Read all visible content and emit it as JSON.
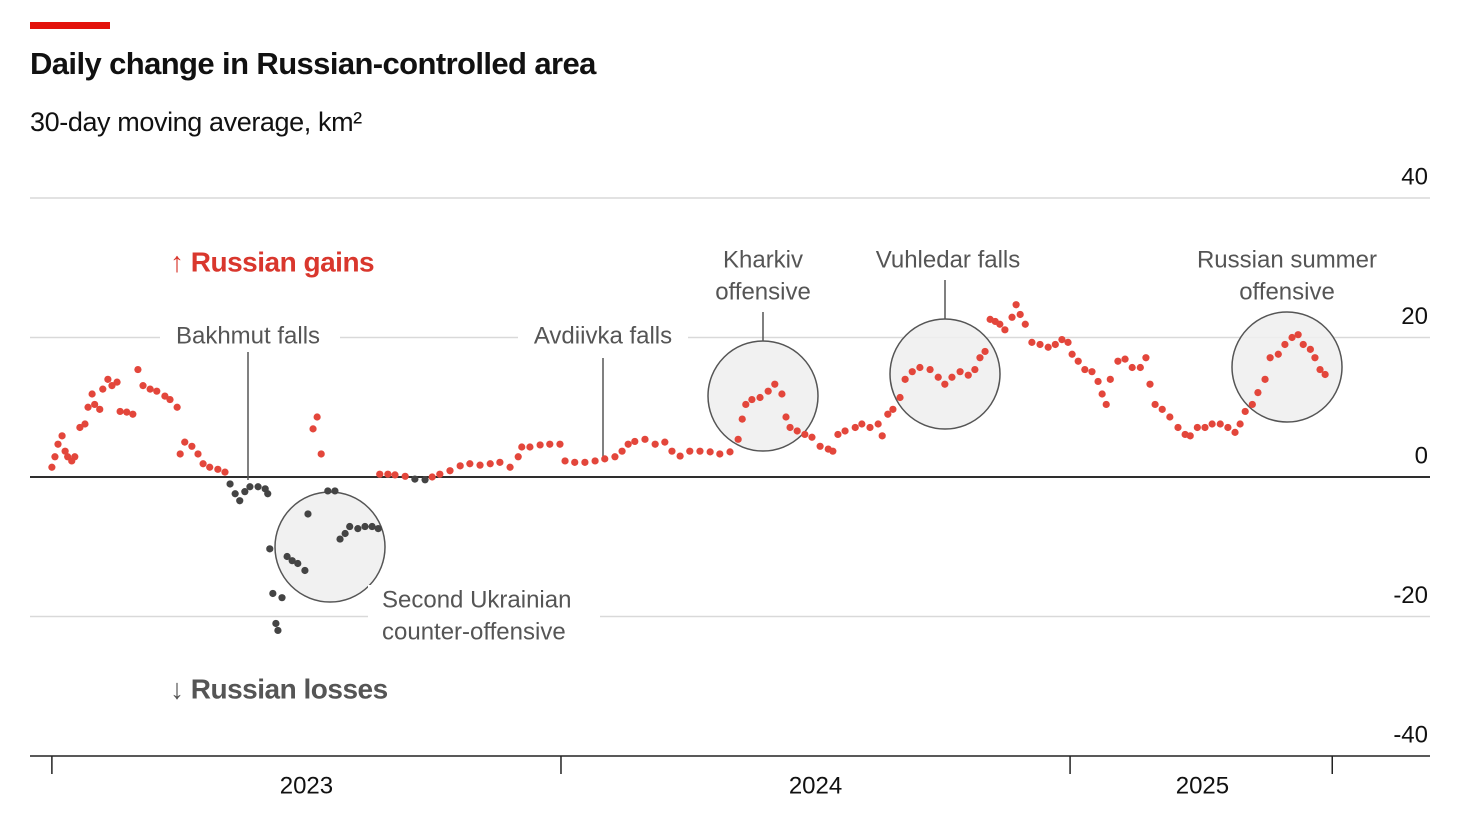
{
  "chart_data": {
    "type": "scatter",
    "title": "Daily change in Russian-controlled area",
    "subtitle": "30-day moving average, km²",
    "gains_label": "↑ Russian gains",
    "losses_label": "↓ Russian losses",
    "annotations": {
      "bakhmut": [
        "Bakhmut falls"
      ],
      "avdiivka": [
        "Avdiivka falls"
      ],
      "kharkiv": [
        "Kharkiv",
        "offensive"
      ],
      "vuhledar": [
        "Vuhledar falls"
      ],
      "summer": [
        "Russian summer",
        "offensive"
      ],
      "counter": [
        "Second Ukrainian",
        "counter-offensive"
      ]
    },
    "color_positive": "#e3463b",
    "color_negative": "#444444",
    "xlim": [
      2022.957,
      2025.707
    ],
    "xtick_marks": [
      2023,
      2024,
      2025,
      2025.515
    ],
    "xticks": [
      {
        "value": 2023.5,
        "label": "2023"
      },
      {
        "value": 2024.5,
        "label": "2024"
      },
      {
        "value": 2025.26,
        "label": "2025"
      }
    ],
    "ylim": [
      -40,
      40
    ],
    "yticks": [
      -40,
      -20,
      0,
      20,
      40
    ],
    "grid": true,
    "x": [
      2023.0,
      2023.006,
      2023.012,
      2023.02,
      2023.026,
      2023.031,
      2023.039,
      2023.045,
      2023.055,
      2023.065,
      2023.071,
      2023.079,
      2023.084,
      2023.094,
      2023.1,
      2023.11,
      2023.118,
      2023.128,
      2023.134,
      2023.147,
      2023.159,
      2023.169,
      2023.179,
      2023.193,
      2023.206,
      2023.222,
      2023.232,
      2023.246,
      2023.252,
      2023.261,
      2023.275,
      2023.287,
      2023.297,
      2023.31,
      2023.326,
      2023.34,
      2023.35,
      2023.36,
      2023.369,
      2023.379,
      2023.389,
      2023.405,
      2023.419,
      2023.424,
      2023.428,
      2023.434,
      2023.44,
      2023.444,
      2023.452,
      2023.462,
      2023.472,
      2023.483,
      2023.497,
      2023.503,
      2023.513,
      2023.521,
      2023.529,
      2023.542,
      2023.556,
      2023.566,
      2023.576,
      2023.585,
      2023.601,
      2023.615,
      2023.629,
      2023.641,
      2023.644,
      2023.66,
      2023.674,
      2023.694,
      2023.713,
      2023.733,
      2023.747,
      2023.762,
      2023.782,
      2023.802,
      2023.821,
      2023.841,
      2023.861,
      2023.88,
      2023.9,
      2023.916,
      2023.923,
      2023.939,
      2023.959,
      2023.978,
      2023.998,
      2024.008,
      2024.027,
      2024.047,
      2024.067,
      2024.086,
      2024.106,
      2024.12,
      2024.132,
      2024.145,
      2024.165,
      2024.185,
      2024.204,
      2024.218,
      2024.234,
      2024.253,
      2024.273,
      2024.293,
      2024.312,
      2024.332,
      2024.348,
      2024.356,
      2024.363,
      2024.375,
      2024.391,
      2024.407,
      2024.42,
      2024.434,
      2024.442,
      2024.45,
      2024.464,
      2024.479,
      2024.493,
      2024.509,
      2024.525,
      2024.534,
      2024.544,
      2024.558,
      2024.578,
      2024.591,
      2024.607,
      2024.623,
      2024.631,
      2024.642,
      2024.652,
      2024.666,
      2024.676,
      2024.69,
      2024.705,
      2024.725,
      2024.741,
      2024.754,
      2024.768,
      2024.784,
      2024.8,
      2024.813,
      2024.823,
      2024.833,
      2024.843,
      2024.853,
      2024.862,
      2024.872,
      2024.886,
      2024.894,
      2024.902,
      2024.912,
      2024.925,
      2024.941,
      2024.957,
      2024.971,
      2024.984,
      2024.996,
      2025.004,
      2025.016,
      2025.029,
      2025.043,
      2025.055,
      2025.063,
      2025.071,
      2025.079,
      2025.094,
      2025.108,
      2025.122,
      2025.138,
      2025.149,
      2025.157,
      2025.167,
      2025.181,
      2025.196,
      2025.212,
      2025.226,
      2025.236,
      2025.25,
      2025.265,
      2025.279,
      2025.295,
      2025.31,
      2025.324,
      2025.334,
      2025.344,
      2025.358,
      2025.369,
      2025.383,
      2025.393,
      2025.409,
      2025.422,
      2025.436,
      2025.448,
      2025.458,
      2025.472,
      2025.481,
      2025.491,
      2025.501
    ],
    "values": [
      1.4,
      2.9,
      4.7,
      5.9,
      3.7,
      2.9,
      2.3,
      2.9,
      7.1,
      7.6,
      10,
      11.9,
      10.4,
      9.7,
      12.6,
      14,
      13.1,
      13.6,
      9.4,
      9.3,
      9,
      15.4,
      13.1,
      12.6,
      12.3,
      11.6,
      11.1,
      10,
      3.3,
      5,
      4.4,
      3.3,
      1.9,
      1.4,
      1.1,
      0.7,
      -1,
      -2.4,
      -3.4,
      -2.1,
      -1.4,
      -1.4,
      -1.7,
      -2.4,
      -10.3,
      -16.7,
      -21,
      -22,
      -17.3,
      -11.4,
      -12,
      -12.4,
      -13.4,
      -5.3,
      6.9,
      8.6,
      3.3,
      -2,
      -2,
      -8.9,
      -8.1,
      -7.1,
      -7.4,
      -7.1,
      -7.1,
      -7.4,
      0.4,
      0.4,
      0.3,
      0.1,
      -0.3,
      -0.4,
      0,
      0.4,
      0.9,
      1.6,
      1.9,
      1.7,
      1.9,
      2.1,
      1.4,
      2.9,
      4.3,
      4.3,
      4.6,
      4.7,
      4.7,
      2.3,
      2.1,
      2.1,
      2.3,
      2.6,
      2.9,
      3.7,
      4.7,
      5.1,
      5.4,
      4.7,
      5,
      3.7,
      3,
      3.7,
      3.7,
      3.6,
      3.3,
      3.6,
      5.4,
      8.3,
      10.4,
      11.1,
      11.4,
      12.3,
      13.3,
      11.9,
      8.6,
      7.1,
      6.6,
      6.1,
      5.7,
      4.4,
      4,
      3.7,
      6.1,
      6.6,
      7.1,
      7.6,
      7.1,
      7.6,
      5.9,
      9,
      9.7,
      11.4,
      14,
      15.1,
      15.7,
      15.4,
      14.3,
      13.3,
      14.3,
      15.1,
      14.6,
      15.4,
      17.1,
      18,
      22.6,
      22.3,
      21.9,
      21.1,
      22.9,
      24.7,
      23.3,
      21.9,
      19.3,
      19,
      18.6,
      19,
      19.7,
      19.3,
      17.6,
      16.6,
      15.4,
      15.1,
      13.7,
      11.9,
      10.4,
      14,
      16.6,
      16.9,
      15.7,
      15.7,
      17.1,
      13.3,
      10.4,
      9.7,
      8.6,
      7.1,
      6.1,
      5.9,
      7.1,
      7.1,
      7.6,
      7.6,
      7.1,
      6.4,
      7.6,
      9.4,
      10.4,
      12.1,
      14,
      17.1,
      17.6,
      19,
      20,
      20.4,
      19,
      18.3,
      17.1,
      15.4,
      14.7
    ]
  }
}
